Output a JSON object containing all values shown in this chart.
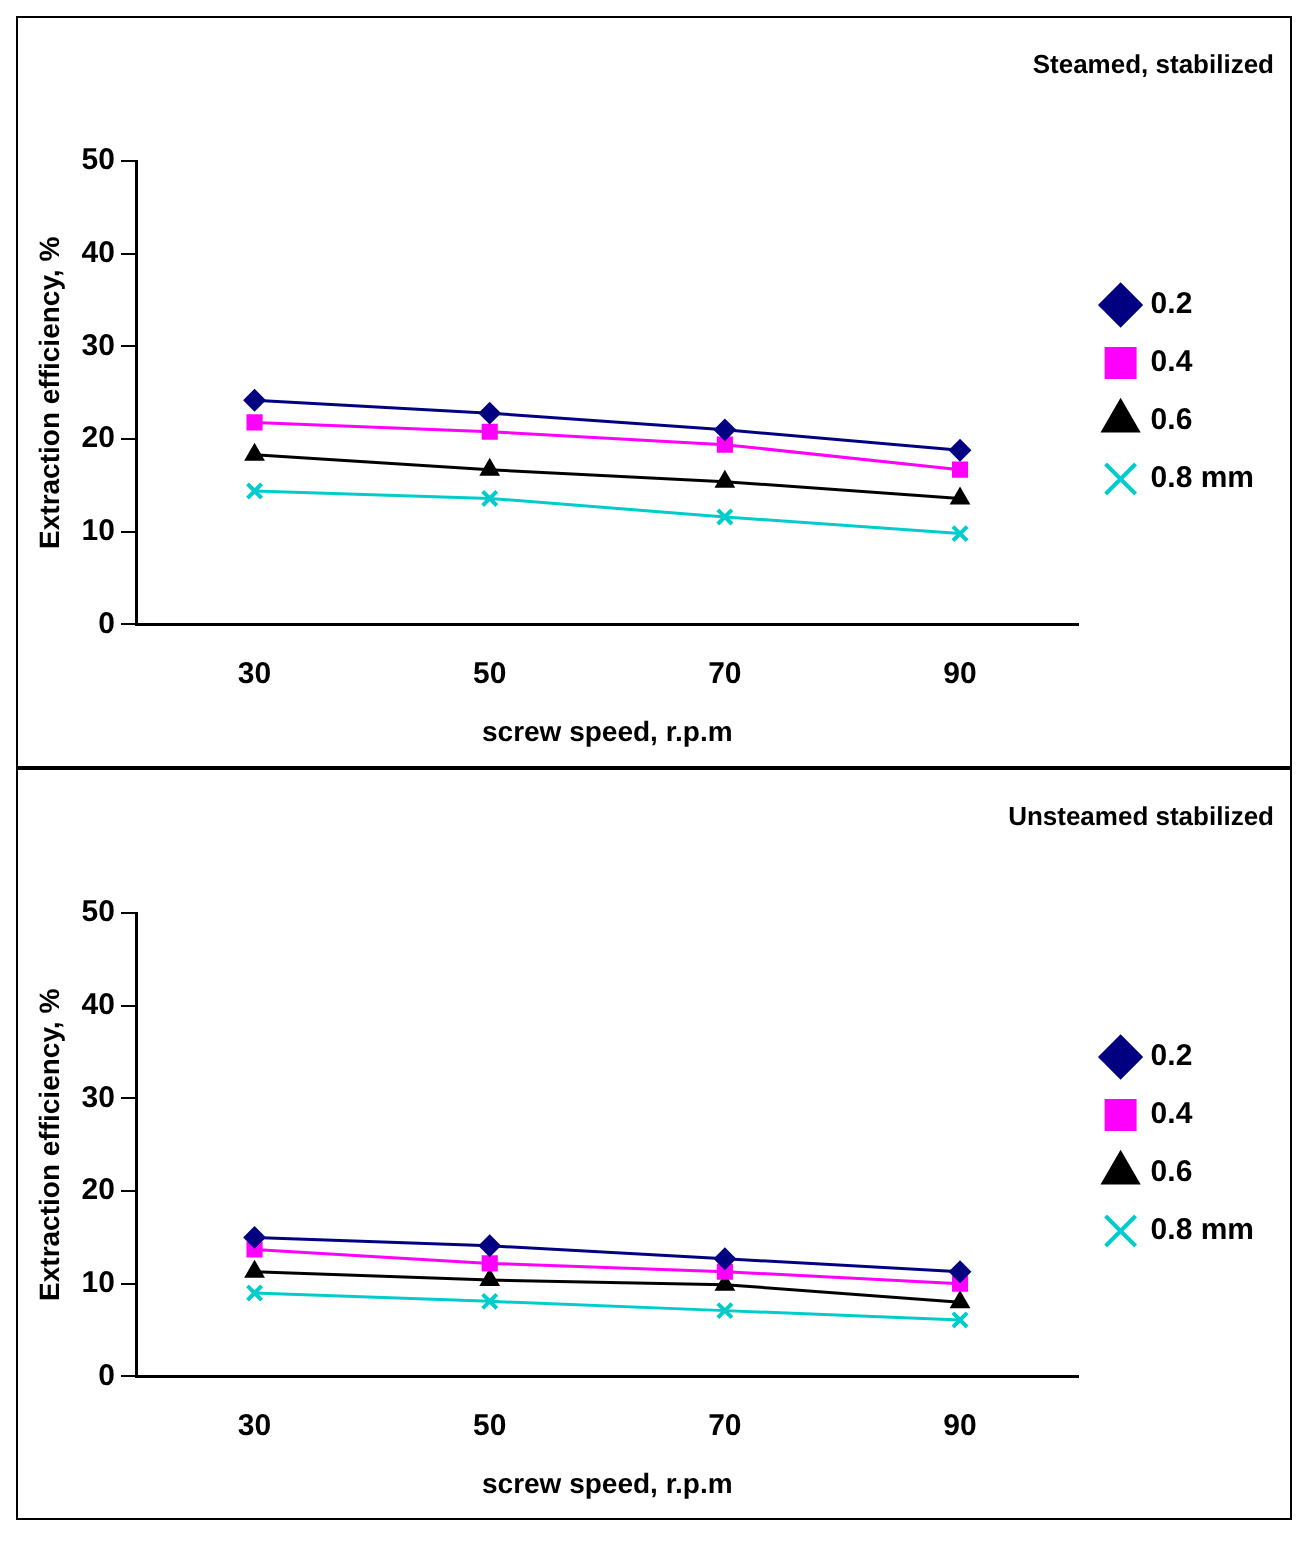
{
  "chart_data": [
    {
      "type": "line",
      "title": "Steamed, stabilized",
      "xlabel": "screw speed, r.p.m",
      "ylabel": "Extraction efficiency, %",
      "categories": [
        "30",
        "50",
        "70",
        "90"
      ],
      "ylim": [
        0,
        50
      ],
      "yticks": [
        0,
        10,
        20,
        30,
        40,
        50
      ],
      "grid": false,
      "legend": "right",
      "line_style": "solid",
      "series": [
        {
          "name": "0.2",
          "color": "#000080",
          "marker": "diamond",
          "values": [
            24.2,
            22.8,
            21.0,
            18.8
          ]
        },
        {
          "name": "0.4",
          "color": "#ff00ff",
          "marker": "square",
          "values": [
            21.8,
            20.8,
            19.4,
            16.7
          ]
        },
        {
          "name": "0.6",
          "color": "#000000",
          "marker": "triangle",
          "values": [
            18.3,
            16.7,
            15.4,
            13.6
          ]
        },
        {
          "name": "0.8 mm",
          "color": "#00cccc",
          "marker": "cross",
          "values": [
            14.4,
            13.6,
            11.6,
            9.8
          ]
        }
      ]
    },
    {
      "type": "line",
      "title": "Unsteamed stabilized",
      "xlabel": "screw speed, r.p.m",
      "ylabel": "Extraction efficiency, %",
      "categories": [
        "30",
        "50",
        "70",
        "90"
      ],
      "ylim": [
        0,
        50
      ],
      "yticks": [
        0,
        10,
        20,
        30,
        40,
        50
      ],
      "grid": false,
      "legend": "right",
      "line_style": "solid",
      "series": [
        {
          "name": "0.2",
          "color": "#000080",
          "marker": "diamond",
          "values": [
            15.0,
            14.1,
            12.7,
            11.3
          ]
        },
        {
          "name": "0.4",
          "color": "#ff00ff",
          "marker": "square",
          "values": [
            13.7,
            12.2,
            11.3,
            10.0
          ]
        },
        {
          "name": "0.6",
          "color": "#000000",
          "marker": "triangle",
          "values": [
            11.3,
            10.4,
            9.9,
            8.0
          ]
        },
        {
          "name": "0.8 mm",
          "color": "#00cccc",
          "marker": "cross",
          "values": [
            9.0,
            8.1,
            7.1,
            6.1
          ]
        }
      ]
    }
  ]
}
